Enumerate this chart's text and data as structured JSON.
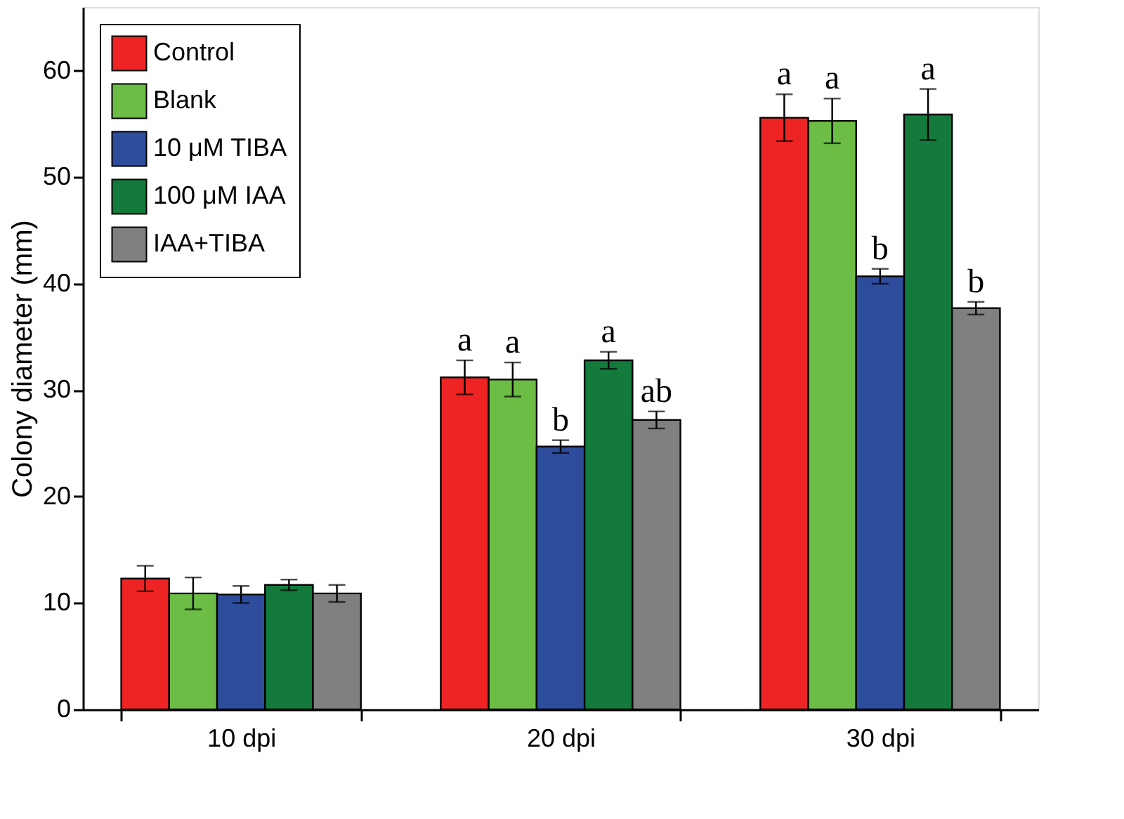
{
  "chart_data": {
    "type": "bar",
    "ylabel": "Colony diameter (mm)",
    "categories": [
      "10 dpi",
      "20 dpi",
      "30 dpi"
    ],
    "series": [
      {
        "name": "Control",
        "color": "#ee2424",
        "values": [
          12.3,
          31.2,
          55.6
        ],
        "errors": [
          1.2,
          1.6,
          2.2
        ]
      },
      {
        "name": "Blank",
        "color": "#6cbd45",
        "values": [
          10.9,
          31.0,
          55.3
        ],
        "errors": [
          1.5,
          1.6,
          2.1
        ]
      },
      {
        "name": "10 μM TIBA",
        "color": "#2e4c9c",
        "values": [
          10.8,
          24.7,
          40.7
        ],
        "errors": [
          0.8,
          0.6,
          0.7
        ]
      },
      {
        "name": "100 μM IAA",
        "color": "#137a3c",
        "values": [
          11.7,
          32.8,
          55.9
        ],
        "errors": [
          0.5,
          0.8,
          2.4
        ]
      },
      {
        "name": "IAA+TIBA",
        "color": "#808080",
        "values": [
          10.9,
          27.2,
          37.7
        ],
        "errors": [
          0.8,
          0.8,
          0.6
        ]
      }
    ],
    "ylim": [
      0,
      66
    ],
    "yticks": [
      0,
      10,
      20,
      30,
      40,
      50,
      60
    ],
    "grid": false,
    "legend": "top left",
    "annotations": [
      "a",
      "a",
      "b",
      "a",
      "ab",
      "a",
      "a",
      "b",
      "a",
      "b"
    ]
  }
}
